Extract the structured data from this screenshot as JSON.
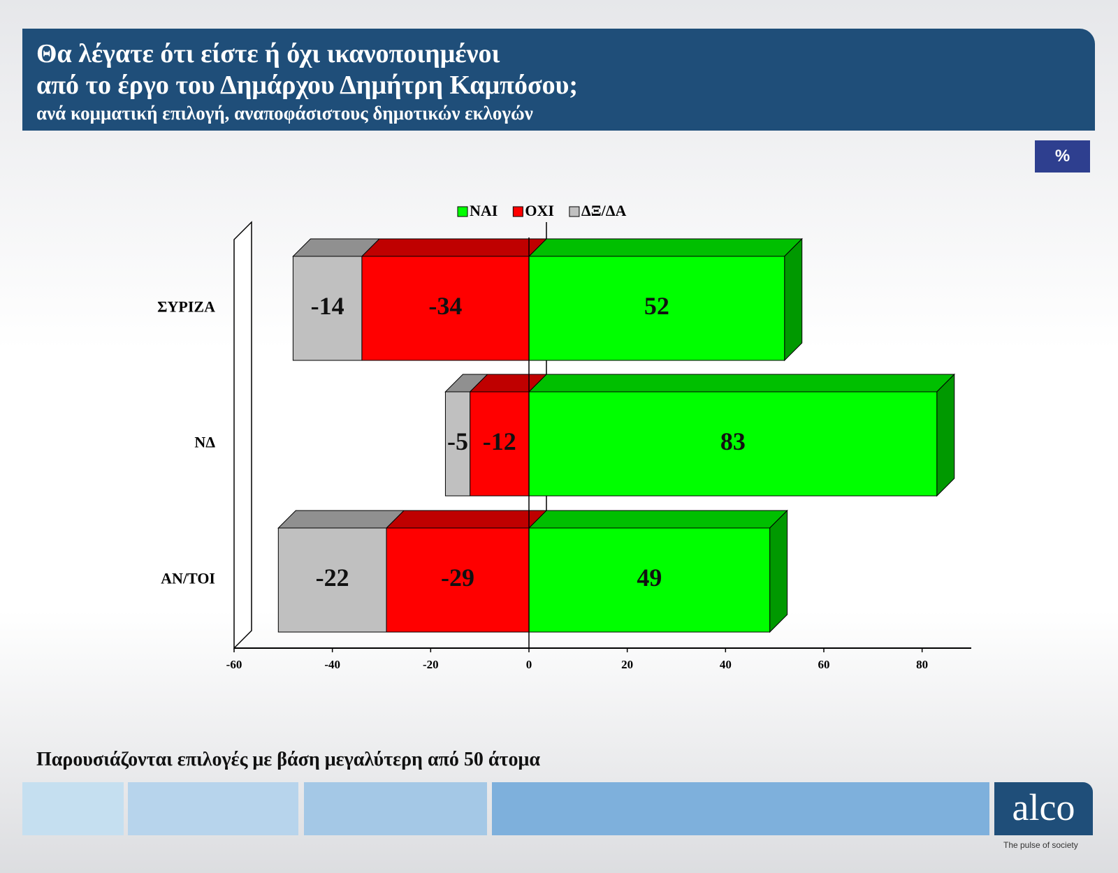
{
  "chart_data": {
    "type": "bar3d-diverging",
    "title": [
      "Θα λέγατε ότι είστε ή όχι ικανοποιημένοι",
      "από το έργο του Δημάρχου Δημήτρη Καμπόσου;"
    ],
    "subtitle": "ανά κομματική επιλογή, αναποφάσιστους δημοτικών εκλογών",
    "unit_badge": "%",
    "categories": [
      "ΣΥΡΙΖΑ",
      "ΝΔ",
      "ΑΝ/ΤΟΙ"
    ],
    "series": [
      {
        "name": "ΝΑΙ",
        "color": "#00ff00",
        "values": [
          52,
          83,
          49
        ]
      },
      {
        "name": "ΟΧΙ",
        "color": "#ff0000",
        "values": [
          -34,
          -12,
          -29
        ]
      },
      {
        "name": "ΔΞ/ΔΑ",
        "color": "#c0c0c0",
        "values": [
          -14,
          -5,
          -22
        ]
      }
    ],
    "xlim": [
      -60,
      90
    ],
    "xticks": [
      -60,
      -40,
      -20,
      0,
      20,
      40,
      60,
      80
    ],
    "grid": false,
    "note": "Παρουσιάζονται επιλογές με βάση μεγαλύτερη από 50 άτομα",
    "logo": "alco",
    "tagline": "The pulse of society"
  }
}
